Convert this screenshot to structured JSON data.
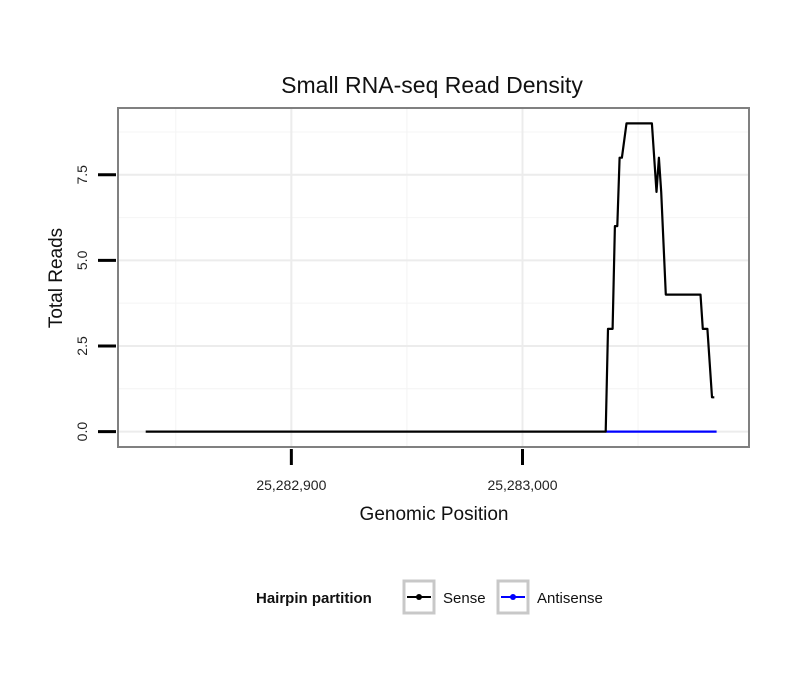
{
  "chart_data": {
    "type": "line",
    "title": "Small RNA-seq Read Density",
    "xlabel": "Genomic Position",
    "ylabel": "Total Reads",
    "xlim": [
      25282825,
      25283098
    ],
    "ylim": [
      -0.45,
      9.45
    ],
    "x_ticks": [
      {
        "value": 25282900,
        "label": "25,282,900"
      },
      {
        "value": 25283000,
        "label": "25,283,000"
      }
    ],
    "y_ticks": [
      {
        "value": 0,
        "label": "0.0"
      },
      {
        "value": 2.5,
        "label": "2.5"
      },
      {
        "value": 5,
        "label": "5.0"
      },
      {
        "value": 7.5,
        "label": "7.5"
      }
    ],
    "legend": {
      "title": "Hairpin partition",
      "position": "bottom"
    },
    "series": [
      {
        "name": "Sense",
        "color": "#000000",
        "x": [
          25282837,
          25283036,
          25283037,
          25283039,
          25283040,
          25283041,
          25283042,
          25283043,
          25283045,
          25283047,
          25283048,
          25283056,
          25283057,
          25283058,
          25283059,
          25283060,
          25283062,
          25283077,
          25283078,
          25283080,
          25283081,
          25283082,
          25283083
        ],
        "y": [
          0,
          0,
          3,
          3,
          6,
          6,
          8,
          8,
          9,
          9,
          9,
          9,
          8,
          7,
          8,
          7,
          4,
          4,
          3,
          3,
          2,
          1,
          1
        ]
      },
      {
        "name": "Antisense",
        "color": "#0000ff",
        "x": [
          25283036,
          25283084
        ],
        "y": [
          0,
          0
        ]
      }
    ]
  }
}
